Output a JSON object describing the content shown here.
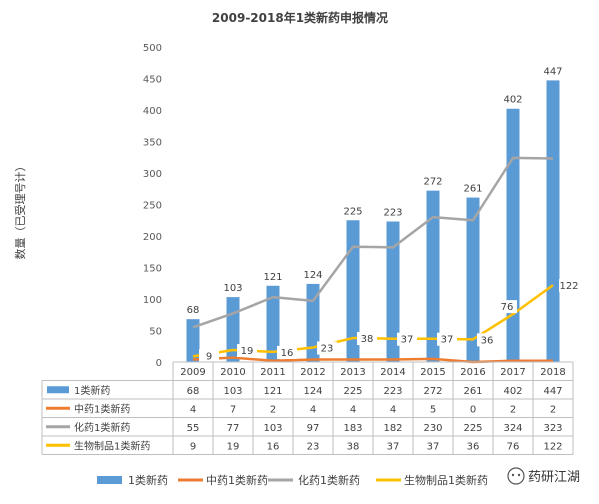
{
  "chart_data": {
    "type": "bar",
    "title": "2009-2018年1类新药申报情况",
    "ylabel": "数量（已受理号计）",
    "xlabel": "",
    "ylim": [
      0,
      500
    ],
    "yticks": [
      0,
      50,
      100,
      150,
      200,
      250,
      300,
      350,
      400,
      450,
      500
    ],
    "categories": [
      "2009",
      "2010",
      "2011",
      "2012",
      "2013",
      "2014",
      "2015",
      "2016",
      "2017",
      "2018"
    ],
    "grid": false,
    "legend_position": "bottom",
    "series": [
      {
        "name": "1类新药",
        "kind": "bar",
        "color": "#5B9BD5",
        "values": [
          68,
          103,
          121,
          124,
          225,
          223,
          272,
          261,
          402,
          447
        ]
      },
      {
        "name": "中药1类新药",
        "kind": "line",
        "color": "#ED7D31",
        "values": [
          4,
          7,
          2,
          4,
          4,
          4,
          5,
          0,
          2,
          2
        ]
      },
      {
        "name": "化药1类新药",
        "kind": "line",
        "color": "#A5A5A5",
        "values": [
          55,
          77,
          103,
          97,
          183,
          182,
          230,
          225,
          324,
          323
        ]
      },
      {
        "name": "生物制品1类新药",
        "kind": "line",
        "color": "#FFC000",
        "values": [
          9,
          19,
          16,
          23,
          38,
          37,
          37,
          36,
          76,
          122
        ]
      }
    ],
    "data_labels": {
      "1类新药": [
        68,
        103,
        121,
        124,
        225,
        223,
        272,
        261,
        402,
        447
      ],
      "生物制品1类新药": [
        9,
        19,
        16,
        23,
        38,
        37,
        37,
        36,
        76,
        122
      ]
    },
    "data_table": true
  },
  "watermark": {
    "text": "药研江湖",
    "icon": "wechat-icon"
  }
}
